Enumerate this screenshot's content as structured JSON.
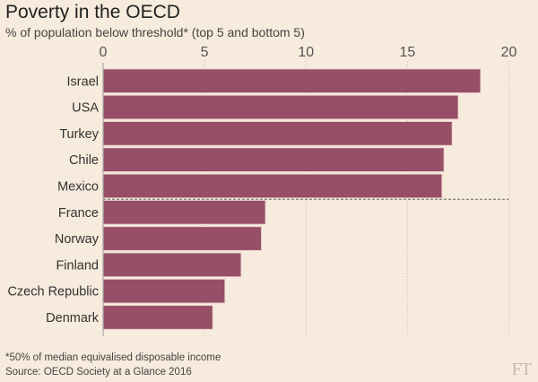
{
  "title": "Poverty in the OECD",
  "subtitle": "% of population below threshold* (top 5 and bottom 5)",
  "footnote": "*50% of median equivalised disposable income",
  "source": "Source: OECD Society at a Glance 2016",
  "logo": "FT",
  "colors": {
    "bar": "#964f67",
    "background": "#f6ebdc"
  },
  "chart_data": {
    "type": "bar",
    "orientation": "horizontal",
    "title": "Poverty in the OECD",
    "xlabel": "% of population below threshold*",
    "ylabel": "",
    "xlim": [
      0,
      20
    ],
    "ticks": [
      0,
      5,
      10,
      15,
      20
    ],
    "tick_labels": [
      "0",
      "5",
      "10",
      "15",
      "20"
    ],
    "grid": true,
    "categories": [
      "Israel",
      "USA",
      "Turkey",
      "Chile",
      "Mexico",
      "France",
      "Norway",
      "Finland",
      "Czech Republic",
      "Denmark"
    ],
    "values": [
      18.6,
      17.5,
      17.2,
      16.8,
      16.7,
      8.0,
      7.8,
      6.8,
      6.0,
      5.4
    ],
    "separator_after_index": 4
  }
}
